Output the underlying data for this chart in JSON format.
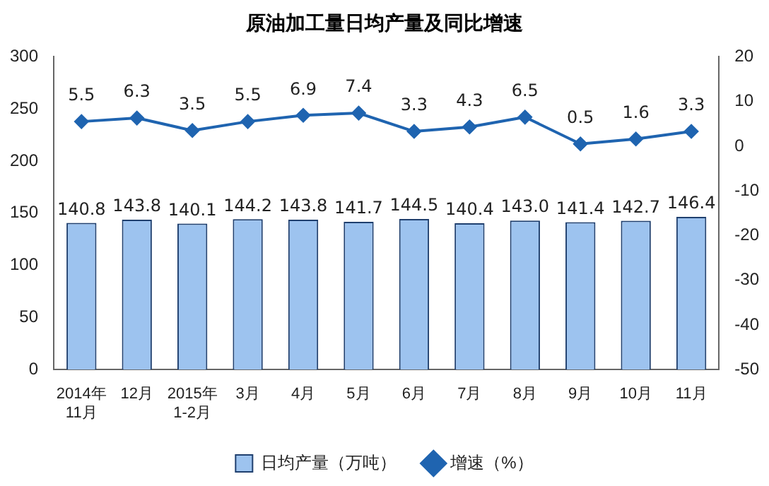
{
  "chart_data": {
    "type": "bar",
    "title": "原油加工量日均产量及同比增速",
    "categories": [
      "2014年11月",
      "12月",
      "2015年1-2月",
      "3月",
      "4月",
      "5月",
      "6月",
      "7月",
      "8月",
      "9月",
      "10月",
      "11月"
    ],
    "series": [
      {
        "name": "日均产量（万吨）",
        "color": "#9dc3ef",
        "values": [
          140.8,
          143.8,
          140.1,
          144.2,
          143.8,
          141.7,
          144.5,
          140.4,
          143.0,
          141.4,
          142.7,
          146.4
        ],
        "value_labels": [
          "140.8",
          "143.8",
          "140.1",
          "144.2",
          "143.8",
          "141.7",
          "144.5",
          "140.4",
          "143.0",
          "141.4",
          "142.7",
          "146.4"
        ]
      },
      {
        "name": "增速（%）",
        "type": "line",
        "axis": "y2",
        "color": "#1f64b0",
        "marker": "diamond",
        "values": [
          5.5,
          6.3,
          3.5,
          5.5,
          6.9,
          7.4,
          3.3,
          4.3,
          6.5,
          0.5,
          1.6,
          3.3
        ],
        "value_labels": [
          "5.5",
          "6.3",
          "3.5",
          "5.5",
          "6.9",
          "7.4",
          "3.3",
          "4.3",
          "6.5",
          "0.5",
          "1.6",
          "3.3"
        ]
      }
    ],
    "ylim": [
      0,
      300
    ],
    "yticks": [
      0,
      50,
      100,
      150,
      200,
      250,
      300
    ],
    "y2lim": [
      -50,
      20
    ],
    "y2ticks": [
      -50,
      -40,
      -30,
      -20,
      -10,
      0,
      10,
      20
    ],
    "grid": false,
    "legend": "bottom"
  }
}
